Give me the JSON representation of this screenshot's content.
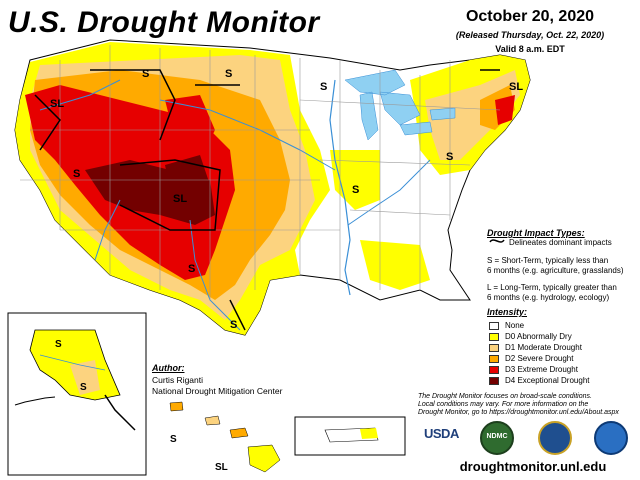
{
  "header": {
    "title": "U.S. Drought Monitor",
    "date": "October 20, 2020",
    "released": "(Released Thursday, Oct. 22, 2020)",
    "valid": "Valid 8 a.m. EDT"
  },
  "impact_types": {
    "heading": "Drought Impact Types:",
    "delineates": "Delineates dominant impacts",
    "short_term_1": "S = Short-Term, typically less than",
    "short_term_2": "6 months (e.g. agriculture, grasslands)",
    "long_term_1": "L = Long-Term, typically greater than",
    "long_term_2": "6 months (e.g. hydrology, ecology)"
  },
  "intensity": {
    "heading": "Intensity:",
    "levels": [
      {
        "label": "None",
        "color": "#ffffff"
      },
      {
        "label": "D0 Abnormally Dry",
        "color": "#ffff00"
      },
      {
        "label": "D1 Moderate Drought",
        "color": "#fcd37f"
      },
      {
        "label": "D2 Severe Drought",
        "color": "#ffaa00"
      },
      {
        "label": "D3 Extreme Drought",
        "color": "#e60000"
      },
      {
        "label": "D4 Exceptional Drought",
        "color": "#730000"
      }
    ]
  },
  "author": {
    "heading": "Author:",
    "name": "Curtis Riganti",
    "org": "National Drought Mitigation Center"
  },
  "note": {
    "line1": "The Drought Monitor focuses on broad-scale conditions.",
    "line2": "Local conditions may vary. For more information on the",
    "line3": "Drought Monitor, go to https://droughtmonitor.unl.edu/About.aspx"
  },
  "logos": {
    "usda": "USDA",
    "ndmc": "NDMC"
  },
  "website": "droughtmonitor.unl.edu",
  "map_labels": {
    "s": "S",
    "l": "L",
    "sl": "SL"
  },
  "colors": {
    "lakes": "#8fd0f2",
    "rivers": "#3a8fd6",
    "state_lines": "#9a9a9a",
    "impact_lines": "#000000"
  }
}
